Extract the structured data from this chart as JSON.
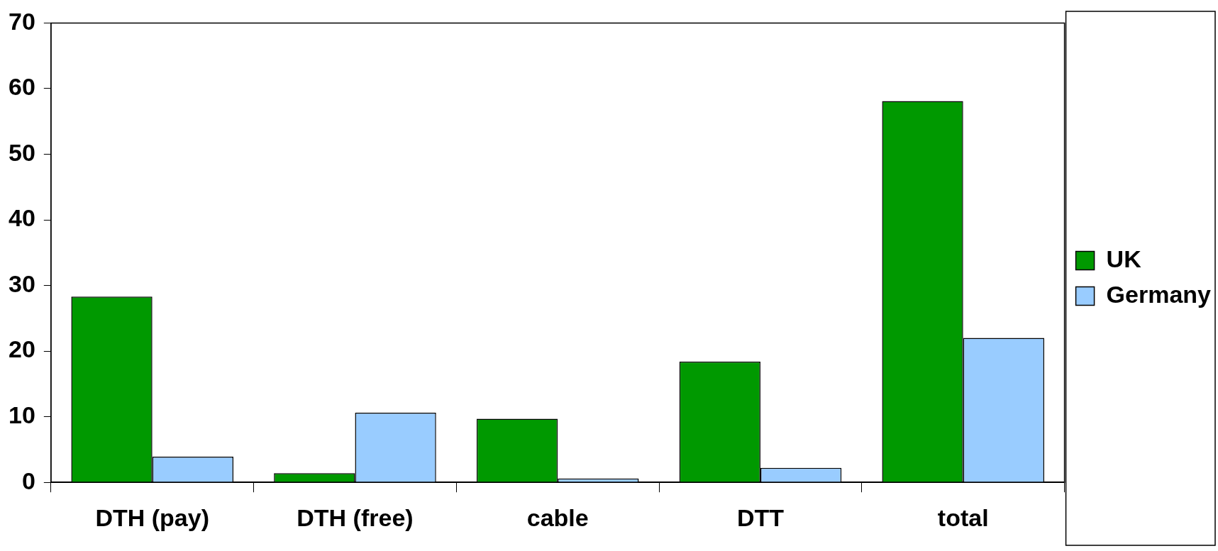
{
  "chart_data": {
    "type": "bar",
    "categories": [
      "DTH (pay)",
      "DTH (free)",
      "cable",
      "DTT",
      "total"
    ],
    "series": [
      {
        "name": "UK",
        "color": "#009900",
        "values": [
          28.3,
          1.4,
          9.7,
          18.4,
          58.1
        ]
      },
      {
        "name": "Germany",
        "color": "#99ccff",
        "values": [
          3.9,
          10.6,
          0.6,
          2.2,
          22.0
        ]
      }
    ],
    "ylim": [
      0,
      70
    ],
    "yticks": [
      0,
      10,
      20,
      30,
      40,
      50,
      60,
      70
    ],
    "grid": false,
    "legend": "right"
  }
}
